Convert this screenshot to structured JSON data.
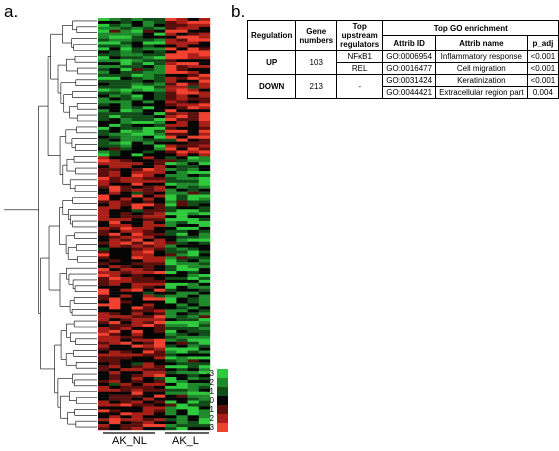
{
  "panels": {
    "a_label": "a.",
    "b_label": "b."
  },
  "heatmap": {
    "groups": [
      "AK_NL",
      "AK_L"
    ],
    "legend_values": [
      "-3",
      "-2",
      "-1",
      "0",
      "1",
      "2",
      "3"
    ],
    "legend_colors": [
      "#2ec93c",
      "#1f8a2c",
      "#104d18",
      "#050505",
      "#5a0f0c",
      "#a81f18",
      "#f2402f"
    ]
  },
  "table": {
    "headers": {
      "regulation": "Regulation",
      "gene_numbers": "Gene numbers",
      "top_upstream": "Top upstream regulators",
      "top_go": "Top GO enrichment",
      "attrib_id": "Attrib ID",
      "attrib_name": "Attrib name",
      "p_adj": "p_adj"
    },
    "rows": [
      {
        "regulation": "UP",
        "gene_numbers": "103",
        "regulators": [
          "NFκB1",
          "REL"
        ],
        "go": [
          {
            "id": "GO:0006954",
            "name": "Inflammatory response",
            "p": "<0.001"
          },
          {
            "id": "GO:0016477",
            "name": "Cell migration",
            "p": "<0.001"
          }
        ]
      },
      {
        "regulation": "DOWN",
        "gene_numbers": "213",
        "regulators": [
          "-"
        ],
        "go": [
          {
            "id": "GO:0031424",
            "name": "Keratinization",
            "p": "<0.001"
          },
          {
            "id": "GO:0044421",
            "name": "Extracellular region part",
            "p": "0.004"
          }
        ]
      }
    ]
  }
}
